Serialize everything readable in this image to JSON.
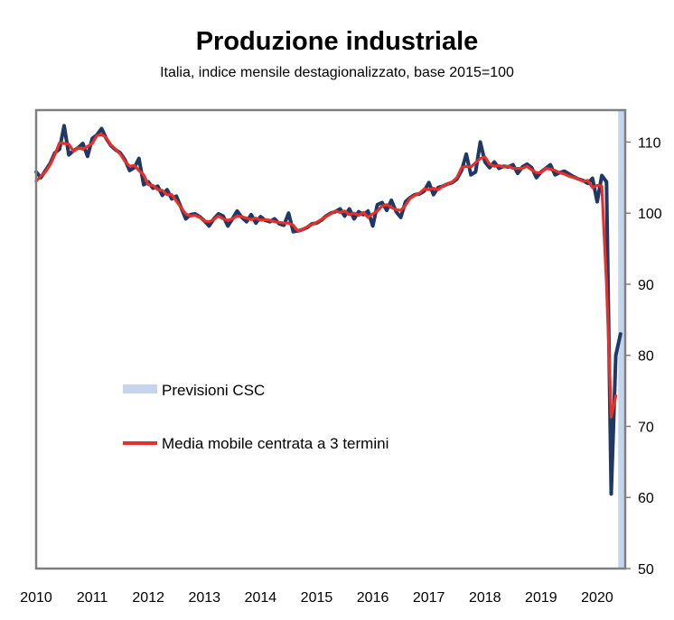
{
  "chart_data": {
    "type": "line",
    "title": "Produzione industriale",
    "subtitle": "Italia, indice mensile destagionalizzato, base 2015=100",
    "xlabel": "",
    "ylabel": "",
    "x_tick_labels": [
      "2010",
      "2011",
      "2012",
      "2013",
      "2014",
      "2015",
      "2016",
      "2017",
      "2018",
      "2019",
      "2020"
    ],
    "y_ticks": [
      50,
      60,
      70,
      80,
      90,
      100,
      110
    ],
    "ylim": [
      50,
      114.5
    ],
    "xlim": [
      2010.0,
      2020.5
    ],
    "forecast_band": {
      "label": "Previsioni CSC",
      "from": 2020.375,
      "to": 2020.5,
      "color": "#c5d6ec"
    },
    "legend_position": "center-left",
    "series": [
      {
        "name": "",
        "color": "#1f3864",
        "x": [
          2010.0,
          2010.083,
          2010.167,
          2010.25,
          2010.333,
          2010.417,
          2010.5,
          2010.583,
          2010.667,
          2010.75,
          2010.833,
          2010.917,
          2011.0,
          2011.083,
          2011.167,
          2011.25,
          2011.333,
          2011.417,
          2011.5,
          2011.583,
          2011.667,
          2011.75,
          2011.833,
          2011.917,
          2012.0,
          2012.083,
          2012.167,
          2012.25,
          2012.333,
          2012.417,
          2012.5,
          2012.583,
          2012.667,
          2012.75,
          2012.833,
          2012.917,
          2013.0,
          2013.083,
          2013.167,
          2013.25,
          2013.333,
          2013.417,
          2013.5,
          2013.583,
          2013.667,
          2013.75,
          2013.833,
          2013.917,
          2014.0,
          2014.083,
          2014.167,
          2014.25,
          2014.333,
          2014.417,
          2014.5,
          2014.583,
          2014.667,
          2014.75,
          2014.833,
          2014.917,
          2015.0,
          2015.083,
          2015.167,
          2015.25,
          2015.333,
          2015.417,
          2015.5,
          2015.583,
          2015.667,
          2015.75,
          2015.833,
          2015.917,
          2016.0,
          2016.083,
          2016.167,
          2016.25,
          2016.333,
          2016.417,
          2016.5,
          2016.583,
          2016.667,
          2016.75,
          2016.833,
          2016.917,
          2017.0,
          2017.083,
          2017.167,
          2017.25,
          2017.333,
          2017.417,
          2017.5,
          2017.583,
          2017.667,
          2017.75,
          2017.833,
          2017.917,
          2018.0,
          2018.083,
          2018.167,
          2018.25,
          2018.333,
          2018.417,
          2018.5,
          2018.583,
          2018.667,
          2018.75,
          2018.833,
          2018.917,
          2019.0,
          2019.083,
          2019.167,
          2019.25,
          2019.333,
          2019.417,
          2019.5,
          2019.583,
          2019.667,
          2019.75,
          2019.833,
          2019.917,
          2020.0,
          2020.083,
          2020.167,
          2020.25,
          2020.333,
          2020.417
        ],
        "values": [
          105.8,
          105.0,
          106.0,
          107.0,
          108.5,
          109.0,
          112.3,
          108.2,
          108.8,
          109.2,
          109.8,
          108.0,
          110.5,
          111.0,
          111.9,
          110.5,
          109.5,
          108.9,
          108.5,
          107.5,
          106.0,
          106.4,
          107.7,
          104.0,
          104.4,
          103.5,
          103.8,
          102.5,
          103.3,
          102.0,
          102.4,
          100.8,
          99.2,
          99.8,
          99.9,
          99.5,
          98.9,
          98.2,
          99.2,
          99.9,
          99.6,
          98.2,
          99.2,
          100.3,
          99.4,
          98.8,
          99.8,
          98.6,
          99.5,
          99.0,
          98.8,
          99.2,
          98.5,
          98.3,
          100.0,
          97.4,
          97.5,
          97.7,
          98.0,
          98.5,
          98.6,
          99.0,
          99.6,
          100.0,
          100.2,
          100.6,
          99.6,
          100.6,
          99.2,
          100.2,
          99.8,
          100.3,
          98.2,
          101.2,
          101.5,
          100.4,
          101.8,
          100.2,
          99.4,
          101.6,
          102.2,
          102.6,
          102.7,
          103.1,
          104.3,
          102.6,
          103.6,
          103.8,
          104.1,
          104.3,
          104.8,
          106.0,
          108.3,
          105.4,
          105.8,
          110.0,
          107.2,
          106.4,
          107.2,
          106.3,
          106.6,
          106.5,
          106.8,
          105.6,
          106.5,
          106.9,
          106.4,
          105.0,
          105.8,
          106.3,
          106.8,
          105.4,
          105.7,
          105.9,
          105.5,
          105.1,
          104.8,
          104.6,
          104.2,
          104.9,
          101.6,
          105.3,
          104.4,
          60.5,
          80.0,
          83.0
        ]
      },
      {
        "name": "Media mobile centrata a 3 termini",
        "color": "#e8302a",
        "x": [
          2010.0,
          2010.083,
          2010.167,
          2010.25,
          2010.333,
          2010.417,
          2010.5,
          2010.583,
          2010.667,
          2010.75,
          2010.833,
          2010.917,
          2011.0,
          2011.083,
          2011.167,
          2011.25,
          2011.333,
          2011.417,
          2011.5,
          2011.583,
          2011.667,
          2011.75,
          2011.833,
          2011.917,
          2012.0,
          2012.083,
          2012.167,
          2012.25,
          2012.333,
          2012.417,
          2012.5,
          2012.583,
          2012.667,
          2012.75,
          2012.833,
          2012.917,
          2013.0,
          2013.083,
          2013.167,
          2013.25,
          2013.333,
          2013.417,
          2013.5,
          2013.583,
          2013.667,
          2013.75,
          2013.833,
          2013.917,
          2014.0,
          2014.083,
          2014.167,
          2014.25,
          2014.333,
          2014.417,
          2014.5,
          2014.583,
          2014.667,
          2014.75,
          2014.833,
          2014.917,
          2015.0,
          2015.083,
          2015.167,
          2015.25,
          2015.333,
          2015.417,
          2015.5,
          2015.583,
          2015.667,
          2015.75,
          2015.833,
          2015.917,
          2016.0,
          2016.083,
          2016.167,
          2016.25,
          2016.333,
          2016.417,
          2016.5,
          2016.583,
          2016.667,
          2016.75,
          2016.833,
          2016.917,
          2017.0,
          2017.083,
          2017.167,
          2017.25,
          2017.333,
          2017.417,
          2017.5,
          2017.583,
          2017.667,
          2017.75,
          2017.833,
          2017.917,
          2018.0,
          2018.083,
          2018.167,
          2018.25,
          2018.333,
          2018.417,
          2018.5,
          2018.583,
          2018.667,
          2018.75,
          2018.833,
          2018.917,
          2019.0,
          2019.083,
          2019.167,
          2019.25,
          2019.333,
          2019.417,
          2019.5,
          2019.583,
          2019.667,
          2019.75,
          2019.833,
          2019.917,
          2020.0,
          2020.083,
          2020.167,
          2020.25,
          2020.333
        ],
        "values": [
          104.5,
          105.2,
          105.8,
          106.8,
          108.2,
          109.9,
          109.8,
          109.7,
          108.7,
          109.2,
          109.0,
          109.4,
          109.8,
          110.9,
          111.1,
          110.6,
          109.6,
          109.0,
          108.3,
          107.3,
          106.6,
          106.7,
          106.0,
          105.4,
          104.0,
          103.9,
          103.3,
          103.2,
          102.6,
          102.6,
          101.7,
          100.8,
          99.9,
          99.6,
          99.7,
          99.4,
          98.9,
          98.8,
          99.1,
          99.6,
          99.2,
          99.0,
          99.2,
          99.6,
          99.5,
          99.3,
          99.1,
          99.3,
          99.0,
          99.1,
          99.0,
          98.8,
          98.7,
          98.6,
          98.6,
          98.3,
          97.5,
          97.7,
          98.1,
          98.4,
          98.7,
          99.1,
          99.5,
          99.9,
          100.3,
          100.1,
          100.3,
          99.8,
          100.0,
          99.7,
          100.1,
          99.4,
          99.9,
          100.3,
          101.0,
          101.2,
          100.8,
          100.5,
          100.4,
          101.1,
          102.1,
          102.5,
          102.8,
          103.4,
          103.3,
          103.5,
          103.3,
          103.8,
          104.1,
          104.4,
          105.0,
          106.4,
          106.6,
          106.5,
          107.1,
          107.7,
          107.9,
          106.9,
          106.6,
          106.7,
          106.5,
          106.6,
          106.3,
          106.3,
          106.3,
          106.6,
          106.1,
          105.7,
          105.7,
          106.3,
          106.2,
          106.0,
          105.7,
          105.5,
          105.2,
          105.0,
          104.8,
          104.5,
          104.6,
          103.6,
          103.9,
          103.8,
          90.1,
          71.3,
          74.3
        ]
      }
    ]
  }
}
